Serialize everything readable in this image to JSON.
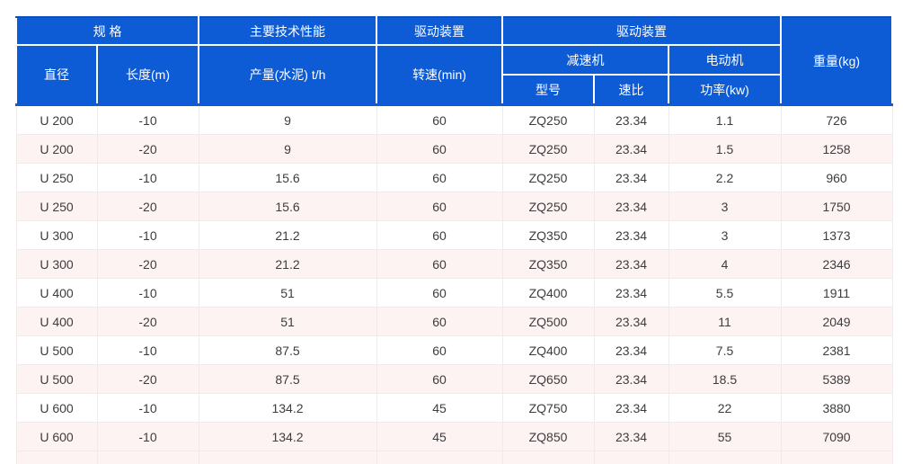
{
  "colors": {
    "page_bg": "#ffffff",
    "header_bg": "#0d5bd5",
    "header_top_line": "#0a50c0",
    "header_text": "#ffffff",
    "header_border": "#ffffff",
    "row_bg": "#ffffff",
    "row_alt_bg": "#fdf3f3",
    "body_border": "#f0eaea",
    "body_text": "#3d3d3d"
  },
  "table": {
    "headers": {
      "spec_group": "规 格",
      "performance_group": "主要技术性能",
      "drive_group_1": "驱动装置",
      "drive_group_2": "驱动装置",
      "weight": "重量(kg)",
      "diameter": "直径",
      "length": "长度(m)",
      "output": "产量(水泥) t/h",
      "speed": "转速(min)",
      "reducer_group": "减速机",
      "motor_group": "电动机",
      "model": "型号",
      "ratio": "速比",
      "power": "功率(kw)"
    },
    "rows": [
      [
        "U 200",
        "-10",
        "9",
        "60",
        "ZQ250",
        "23.34",
        "1.1",
        "726"
      ],
      [
        "U 200",
        "-20",
        "9",
        "60",
        "ZQ250",
        "23.34",
        "1.5",
        "1258"
      ],
      [
        "U 250",
        "-10",
        "15.6",
        "60",
        "ZQ250",
        "23.34",
        "2.2",
        "960"
      ],
      [
        "U 250",
        "-20",
        "15.6",
        "60",
        "ZQ250",
        "23.34",
        "3",
        "1750"
      ],
      [
        "U 300",
        "-10",
        "21.2",
        "60",
        "ZQ350",
        "23.34",
        "3",
        "1373"
      ],
      [
        "U 300",
        "-20",
        "21.2",
        "60",
        "ZQ350",
        "23.34",
        "4",
        "2346"
      ],
      [
        "U 400",
        "-10",
        "51",
        "60",
        "ZQ400",
        "23.34",
        "5.5",
        "1911"
      ],
      [
        "U 400",
        "-20",
        "51",
        "60",
        "ZQ500",
        "23.34",
        "11",
        "2049"
      ],
      [
        "U 500",
        "-10",
        "87.5",
        "60",
        "ZQ400",
        "23.34",
        "7.5",
        "2381"
      ],
      [
        "U 500",
        "-20",
        "87.5",
        "60",
        "ZQ650",
        "23.34",
        "18.5",
        "5389"
      ],
      [
        "U 600",
        "-10",
        "134.2",
        "45",
        "ZQ750",
        "23.34",
        "22",
        "3880"
      ],
      [
        "U 600",
        "-10",
        "134.2",
        "45",
        "ZQ850",
        "23.34",
        "55",
        "7090"
      ]
    ]
  }
}
